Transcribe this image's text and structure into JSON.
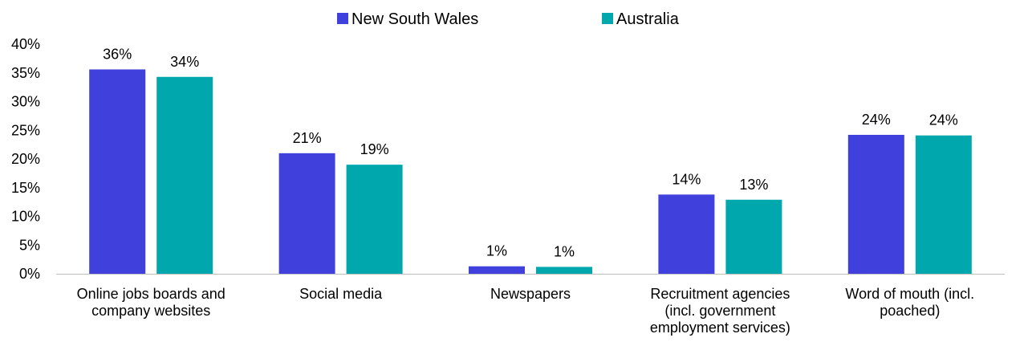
{
  "chart_data": {
    "type": "bar",
    "title": "",
    "xlabel": "",
    "ylabel": "",
    "ylim": [
      0,
      40
    ],
    "yticks": [
      0,
      5,
      10,
      15,
      20,
      25,
      30,
      35,
      40
    ],
    "y_tick_labels": [
      "0%",
      "5%",
      "10%",
      "15%",
      "20%",
      "25%",
      "30%",
      "35%",
      "40%"
    ],
    "grid": false,
    "legend_position": "top-center",
    "categories": [
      [
        "Online jobs boards and",
        "company websites"
      ],
      [
        "Social media"
      ],
      [
        "Newspapers"
      ],
      [
        "Recruitment agencies",
        "(incl. government",
        "employment services)"
      ],
      [
        "Word of mouth (incl.",
        "poached)"
      ]
    ],
    "series": [
      {
        "name": "New South Wales",
        "color": "#4040DC",
        "values": [
          35.6,
          21.0,
          1.3,
          13.8,
          24.2
        ],
        "labels": [
          "36%",
          "21%",
          "1%",
          "14%",
          "24%"
        ]
      },
      {
        "name": "Australia",
        "color": "#00A7AC",
        "values": [
          34.3,
          19.0,
          1.2,
          12.9,
          24.1
        ],
        "labels": [
          "34%",
          "19%",
          "1%",
          "13%",
          "24%"
        ]
      }
    ]
  }
}
